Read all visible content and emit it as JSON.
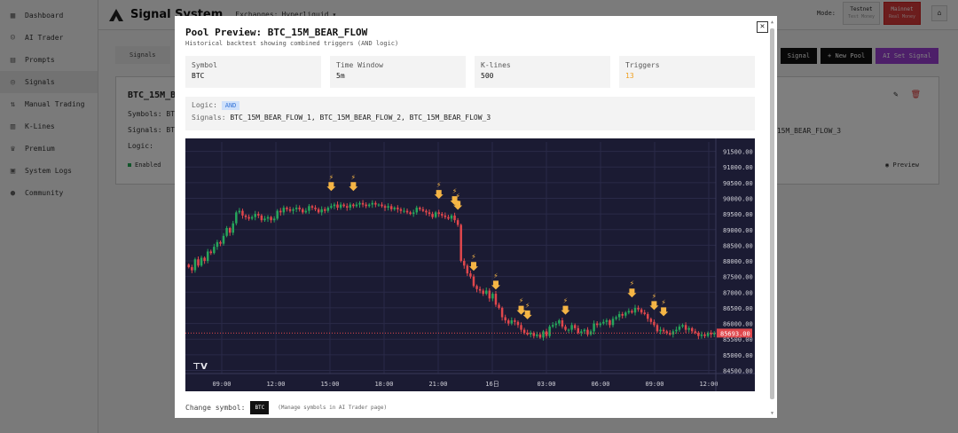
{
  "app": {
    "title": "Signal System",
    "exchange_label": "Exchanges:",
    "exchange_value": "Hyperliquid",
    "mode_label": "Mode:",
    "mode_testnet": "Testnet",
    "mode_testnet_sub": "Test Money",
    "mode_mainnet": "Mainnet",
    "mode_mainnet_sub": "Real Money"
  },
  "sidebar": {
    "items": [
      {
        "label": "Dashboard",
        "icon": "dashboard-icon"
      },
      {
        "label": "AI Trader",
        "icon": "robot-icon"
      },
      {
        "label": "Prompts",
        "icon": "document-icon"
      },
      {
        "label": "Signals",
        "icon": "signal-icon"
      },
      {
        "label": "Manual Trading",
        "icon": "trade-icon"
      },
      {
        "label": "K-Lines",
        "icon": "chart-icon"
      },
      {
        "label": "Premium",
        "icon": "crown-icon"
      },
      {
        "label": "System Logs",
        "icon": "log-icon"
      },
      {
        "label": "Community",
        "icon": "community-icon"
      }
    ]
  },
  "page": {
    "tab_signals": "Signals",
    "btn_signal": "Signal",
    "btn_new_pool": "+ New Pool",
    "btn_ai_set_signal": "AI Set Signal",
    "card_name": "BTC_15M_B",
    "card_symbols": "Symbols: BT",
    "card_signals": "Signals: BT",
    "card_logic": "Logic:",
    "card_signals_right": "_15M_BEAR_FLOW_3",
    "card_enabled": "Enabled",
    "card_preview": "Preview"
  },
  "modal": {
    "title": "Pool Preview: BTC_15M_BEAR_FLOW",
    "subtitle": "Historical backtest showing combined triggers (AND logic)",
    "close_label": "✕",
    "stats": [
      {
        "label": "Symbol",
        "value": "BTC"
      },
      {
        "label": "Time Window",
        "value": "5m"
      },
      {
        "label": "K-lines",
        "value": "500"
      },
      {
        "label": "Triggers",
        "value": "13"
      }
    ],
    "logic_label": "Logic:",
    "logic_value": "AND",
    "signals_label": "Signals:",
    "signals_value": "BTC_15M_BEAR_FLOW_1, BTC_15M_BEAR_FLOW_2, BTC_15M_BEAR_FLOW_3",
    "change_symbol_label": "Change symbol:",
    "change_symbol_value": "BTC",
    "manage_note": "(Manage symbols in AI Trader page)"
  },
  "chart_data": {
    "type": "candlestick",
    "symbol": "BTC",
    "ylim": [
      84400,
      91800
    ],
    "y_ticks": [
      91500,
      91000,
      90500,
      90000,
      89500,
      89000,
      88500,
      88000,
      87500,
      87000,
      86500,
      86000,
      85500,
      85000,
      84500
    ],
    "y_tick_labels": [
      "91500.00",
      "91000.00",
      "90500.00",
      "90000.00",
      "89500.00",
      "89000.00",
      "88500.00",
      "88000.00",
      "87500.00",
      "87000.00",
      "86500.00",
      "86000.00",
      "85500.00",
      "85000.00",
      "84500.00"
    ],
    "x_tick_labels": [
      "09:00",
      "12:00",
      "15:00",
      "18:00",
      "21:00",
      "16日",
      "03:00",
      "06:00",
      "09:00",
      "12:00"
    ],
    "last_price": 85693,
    "last_price_label": "85693.00",
    "colors": {
      "up": "#26a65b",
      "down": "#e0474c",
      "bg": "#1b1b33",
      "grid": "#2a2a48",
      "marker": "#f5b545",
      "price_line": "#e0474c"
    },
    "close_series": [
      87800,
      87700,
      88050,
      87850,
      88100,
      88000,
      88300,
      88250,
      88450,
      88600,
      88550,
      88800,
      89050,
      88900,
      89200,
      89550,
      89600,
      89450,
      89400,
      89350,
      89400,
      89500,
      89450,
      89300,
      89350,
      89400,
      89300,
      89350,
      89600,
      89550,
      89700,
      89650,
      89600,
      89650,
      89700,
      89650,
      89550,
      89600,
      89750,
      89700,
      89650,
      89550,
      89650,
      89600,
      89700,
      89750,
      89800,
      89700,
      89800,
      89750,
      89700,
      89800,
      89750,
      89800,
      89850,
      89800,
      89750,
      89800,
      89850,
      89800,
      89800,
      89750,
      89700,
      89750,
      89650,
      89700,
      89650,
      89600,
      89600,
      89550,
      89500,
      89550,
      89700,
      89650,
      89600,
      89550,
      89500,
      89400,
      89550,
      89500,
      89450,
      89400,
      89350,
      89450,
      89300,
      89150,
      88000,
      87850,
      87600,
      87500,
      87200,
      87100,
      87050,
      86950,
      87050,
      86800,
      86950,
      86600,
      86500,
      86200,
      86100,
      86000,
      86100,
      86050,
      85950,
      85800,
      85700,
      85650,
      85700,
      85600,
      85650,
      85550,
      85750,
      85600,
      85900,
      85950,
      86000,
      86100,
      85900,
      85800,
      85800,
      85950,
      85850,
      85700,
      85750,
      85800,
      85650,
      85750,
      86000,
      85950,
      86000,
      86050,
      86100,
      85950,
      86150,
      86200,
      86300,
      86250,
      86350,
      86400,
      86350,
      86500,
      86450,
      86350,
      86300,
      86150,
      86050,
      85950,
      85750,
      85800,
      85750,
      85700,
      85650,
      85750,
      85800,
      85900,
      85950,
      85800,
      85850,
      85750,
      85700,
      85600,
      85650,
      85600,
      85700,
      85650,
      85693
    ],
    "trigger_indices": [
      27,
      31,
      47,
      50,
      51,
      54,
      58,
      63,
      64,
      71,
      84,
      88,
      90
    ],
    "triggers_note": "13"
  }
}
